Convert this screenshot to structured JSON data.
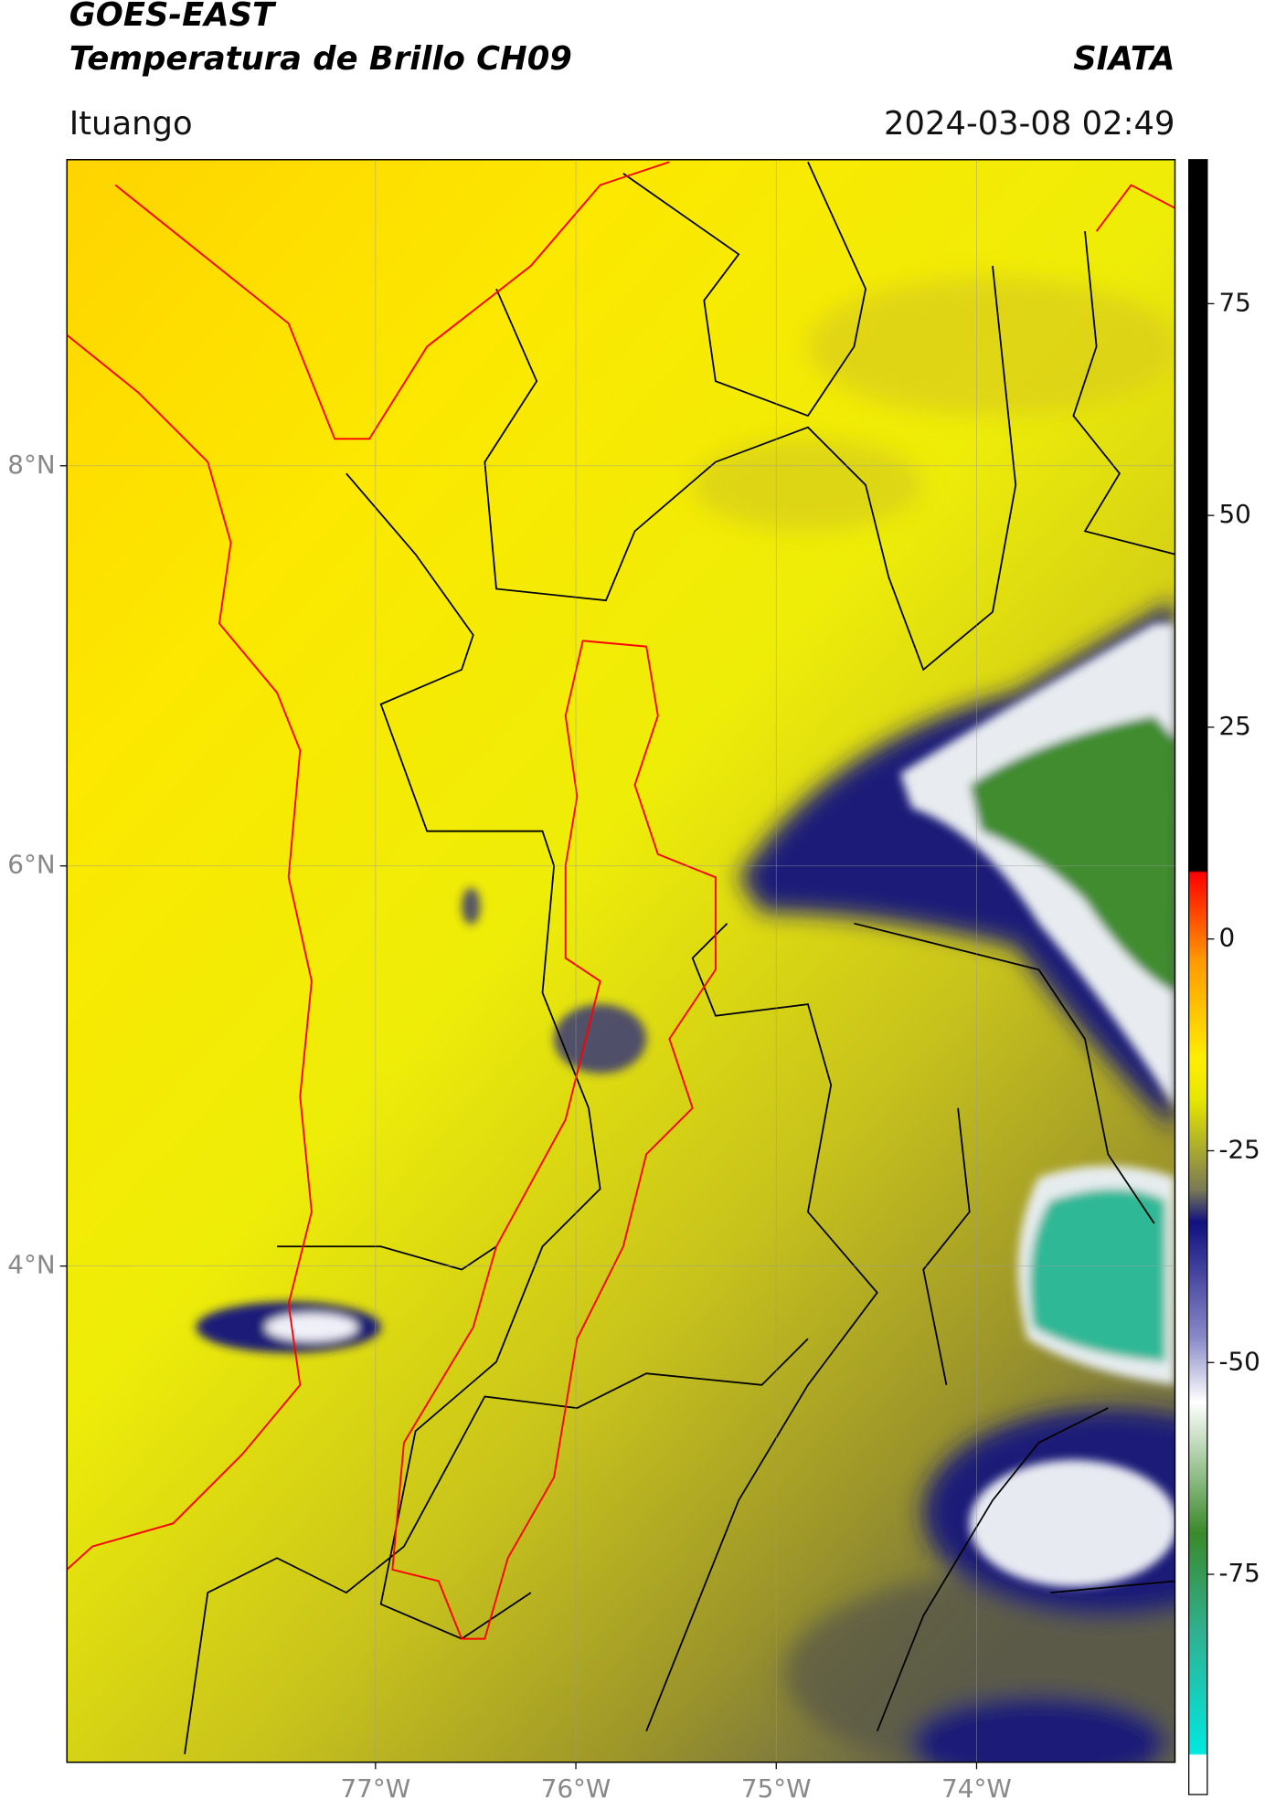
{
  "chart_data": {
    "type": "map",
    "title": "GOES-EAST",
    "subtitle": "Temperatura de Brillo CH09",
    "source": "SIATA",
    "location": "Ituango",
    "datetime": "2024-03-08 02:49",
    "xlim": [
      -78.54,
      -73.01
    ],
    "ylim": [
      1.52,
      9.53
    ],
    "xticks": [
      {
        "value": -77,
        "label": "77°W"
      },
      {
        "value": -76,
        "label": "76°W"
      },
      {
        "value": -75,
        "label": "75°W"
      },
      {
        "value": -74,
        "label": "74°W"
      }
    ],
    "yticks": [
      {
        "value": 8,
        "label": "8°N"
      },
      {
        "value": 6,
        "label": "6°N"
      },
      {
        "value": 4,
        "label": "4°N"
      }
    ],
    "grid": true,
    "clim": [
      -101,
      92
    ],
    "cticks": [
      75,
      50,
      25,
      0,
      -25,
      -50,
      -75
    ]
  }
}
